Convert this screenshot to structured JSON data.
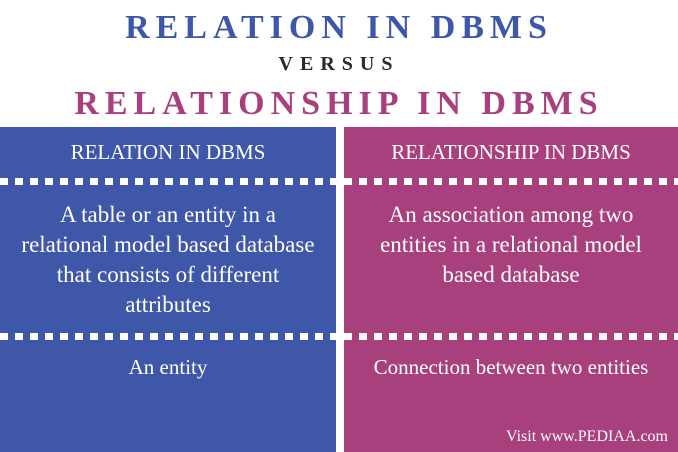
{
  "title": {
    "main": "RELATION IN DBMS",
    "versus": "VERSUS",
    "sub": "RELATIONSHIP IN DBMS"
  },
  "left": {
    "header": "RELATION IN DBMS",
    "definition": "A table or an entity in a relational model based database that consists of different attributes",
    "represents": "An entity"
  },
  "right": {
    "header": "RELATIONSHIP IN DBMS",
    "definition": "An association among two entities in a relational model based database",
    "represents": "Connection between two entities"
  },
  "credit": "Visit www.PEDIAA.com",
  "colors": {
    "relation": "#3f57a8",
    "relationship": "#a8407e",
    "versus": "#2a2a2a"
  }
}
